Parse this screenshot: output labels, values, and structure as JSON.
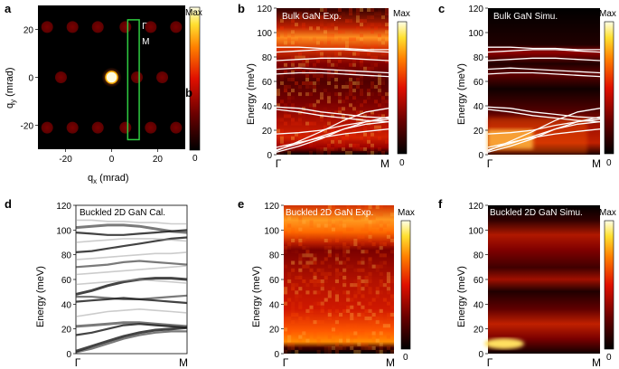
{
  "figure": {
    "cbar_max": "Max",
    "cbar_min": "0",
    "gamma": "Γ",
    "m_point": "M"
  },
  "panels": [
    {
      "letter": "a",
      "ylabel_main": "q",
      "ylabel_sub": "y",
      "ylabel_unit": " (mrad)",
      "xlabel_main": "q",
      "xlabel_sub": "x",
      "xlabel_unit": " (mrad)",
      "x_ticks": [
        "-20",
        "0",
        "20"
      ],
      "y_ticks": [
        "20",
        "0",
        "-20"
      ],
      "box_label_top": "Γ",
      "box_label_mid": "M",
      "overlay_letter": "b"
    },
    {
      "letter": "b",
      "title": "Bulk GaN Exp.",
      "ylabel": "Energy (meV)",
      "y_ticks": [
        "0",
        "20",
        "40",
        "60",
        "80",
        "100",
        "120"
      ],
      "x_ticks": [
        "Γ",
        "M"
      ]
    },
    {
      "letter": "c",
      "title": "Bulk GaN Simu.",
      "ylabel": "Energy (meV)",
      "y_ticks": [
        "0",
        "20",
        "40",
        "60",
        "80",
        "100",
        "120"
      ],
      "x_ticks": [
        "Γ",
        "M"
      ]
    },
    {
      "letter": "d",
      "title": "Buckled 2D GaN Cal.",
      "ylabel": "Energy (meV)",
      "y_ticks": [
        "0",
        "20",
        "40",
        "60",
        "80",
        "100",
        "120"
      ],
      "x_ticks": [
        "Γ",
        "M"
      ]
    },
    {
      "letter": "e",
      "title": "Buckled 2D GaN Exp.",
      "ylabel": "Energy (meV)",
      "y_ticks": [
        "0",
        "20",
        "40",
        "60",
        "80",
        "100",
        "120"
      ],
      "x_ticks": [
        "Γ",
        "M"
      ]
    },
    {
      "letter": "f",
      "title": "Buckled 2D GaN Simu.",
      "ylabel": "Energy (meV)",
      "y_ticks": [
        "0",
        "20",
        "40",
        "60",
        "80",
        "100",
        "120"
      ],
      "x_ticks": [
        "Γ",
        "M"
      ]
    }
  ],
  "chart_data": [
    {
      "type": "heatmap",
      "panel": "a",
      "xlim": [
        -32,
        32
      ],
      "ylim": [
        -30,
        30
      ],
      "spots": [
        {
          "qx": -28,
          "qy": 21
        },
        {
          "qx": -17,
          "qy": 21
        },
        {
          "qx": -6,
          "qy": 21
        },
        {
          "qx": 6,
          "qy": 21
        },
        {
          "qx": 17,
          "qy": 21
        },
        {
          "qx": 28,
          "qy": 21
        },
        {
          "qx": -22,
          "qy": 0
        },
        {
          "qx": 0,
          "qy": 0,
          "central": true
        },
        {
          "qx": 11,
          "qy": 0
        },
        {
          "qx": 22,
          "qy": 0
        },
        {
          "qx": -28,
          "qy": -21
        },
        {
          "qx": -17,
          "qy": -21
        },
        {
          "qx": -6,
          "qy": -21
        },
        {
          "qx": 6,
          "qy": -21
        },
        {
          "qx": 17,
          "qy": -21
        },
        {
          "qx": 28,
          "qy": -21
        }
      ],
      "box": {
        "x0": 7,
        "x1": 12,
        "y0": -26,
        "y1": 24
      }
    },
    {
      "type": "heatmap",
      "panel": "b",
      "ylim": [
        0,
        120
      ],
      "bands": [
        [
          6,
          10,
          14,
          17,
          19,
          21
        ],
        [
          4,
          9,
          15,
          21,
          25,
          27
        ],
        [
          2,
          7,
          13,
          21,
          27,
          31
        ],
        [
          3,
          11,
          19,
          28,
          35,
          38
        ],
        [
          17,
          18,
          20,
          24,
          27,
          29
        ],
        [
          37,
          35,
          32,
          30,
          28,
          27
        ],
        [
          39,
          38,
          35,
          33,
          31,
          30
        ],
        [
          66,
          67,
          67,
          66,
          65,
          64
        ],
        [
          70,
          71,
          70,
          69,
          68,
          67
        ],
        [
          77,
          78,
          79,
          79,
          78,
          77
        ],
        [
          84,
          85,
          86,
          86,
          85,
          84
        ],
        [
          88,
          88,
          87,
          87,
          86,
          86
        ]
      ]
    },
    {
      "type": "heatmap",
      "panel": "c",
      "ylim": [
        0,
        120
      ],
      "bands": [
        [
          6,
          10,
          14,
          17,
          19,
          21
        ],
        [
          4,
          9,
          15,
          21,
          25,
          27
        ],
        [
          2,
          7,
          13,
          21,
          27,
          31
        ],
        [
          3,
          11,
          19,
          28,
          35,
          38
        ],
        [
          17,
          18,
          20,
          24,
          27,
          29
        ],
        [
          37,
          35,
          32,
          30,
          28,
          27
        ],
        [
          39,
          38,
          35,
          33,
          31,
          30
        ],
        [
          66,
          67,
          67,
          66,
          65,
          64
        ],
        [
          70,
          71,
          70,
          69,
          68,
          67
        ],
        [
          77,
          78,
          79,
          79,
          78,
          77
        ],
        [
          84,
          85,
          86,
          86,
          85,
          84
        ],
        [
          88,
          88,
          87,
          87,
          86,
          86
        ]
      ]
    },
    {
      "type": "heatmap",
      "panel": "d",
      "ylim": [
        0,
        120
      ],
      "bands": [
        [
          2,
          6,
          10,
          14,
          17,
          19,
          20,
          21
        ],
        [
          1,
          4,
          8,
          12,
          15,
          17,
          18,
          18
        ],
        [
          15,
          17,
          20,
          23,
          24,
          23,
          22,
          21
        ],
        [
          22,
          23,
          24,
          25,
          25,
          24,
          23,
          22
        ],
        [
          42,
          43,
          44,
          45,
          44,
          43,
          42,
          41
        ],
        [
          46,
          46,
          45,
          44,
          44,
          45,
          46,
          47
        ],
        [
          48,
          51,
          55,
          58,
          60,
          61,
          61,
          60
        ],
        [
          70,
          71,
          72,
          74,
          75,
          74,
          73,
          72
        ],
        [
          82,
          83,
          85,
          87,
          89,
          91,
          93,
          94
        ],
        [
          102,
          103,
          104,
          104,
          103,
          101,
          99,
          98
        ],
        [
          98,
          97,
          96,
          96,
          97,
          98,
          99,
          100
        ]
      ]
    },
    {
      "type": "heatmap",
      "panel": "e",
      "ylim": [
        0,
        120
      ]
    },
    {
      "type": "heatmap",
      "panel": "f",
      "ylim": [
        0,
        120
      ]
    }
  ]
}
